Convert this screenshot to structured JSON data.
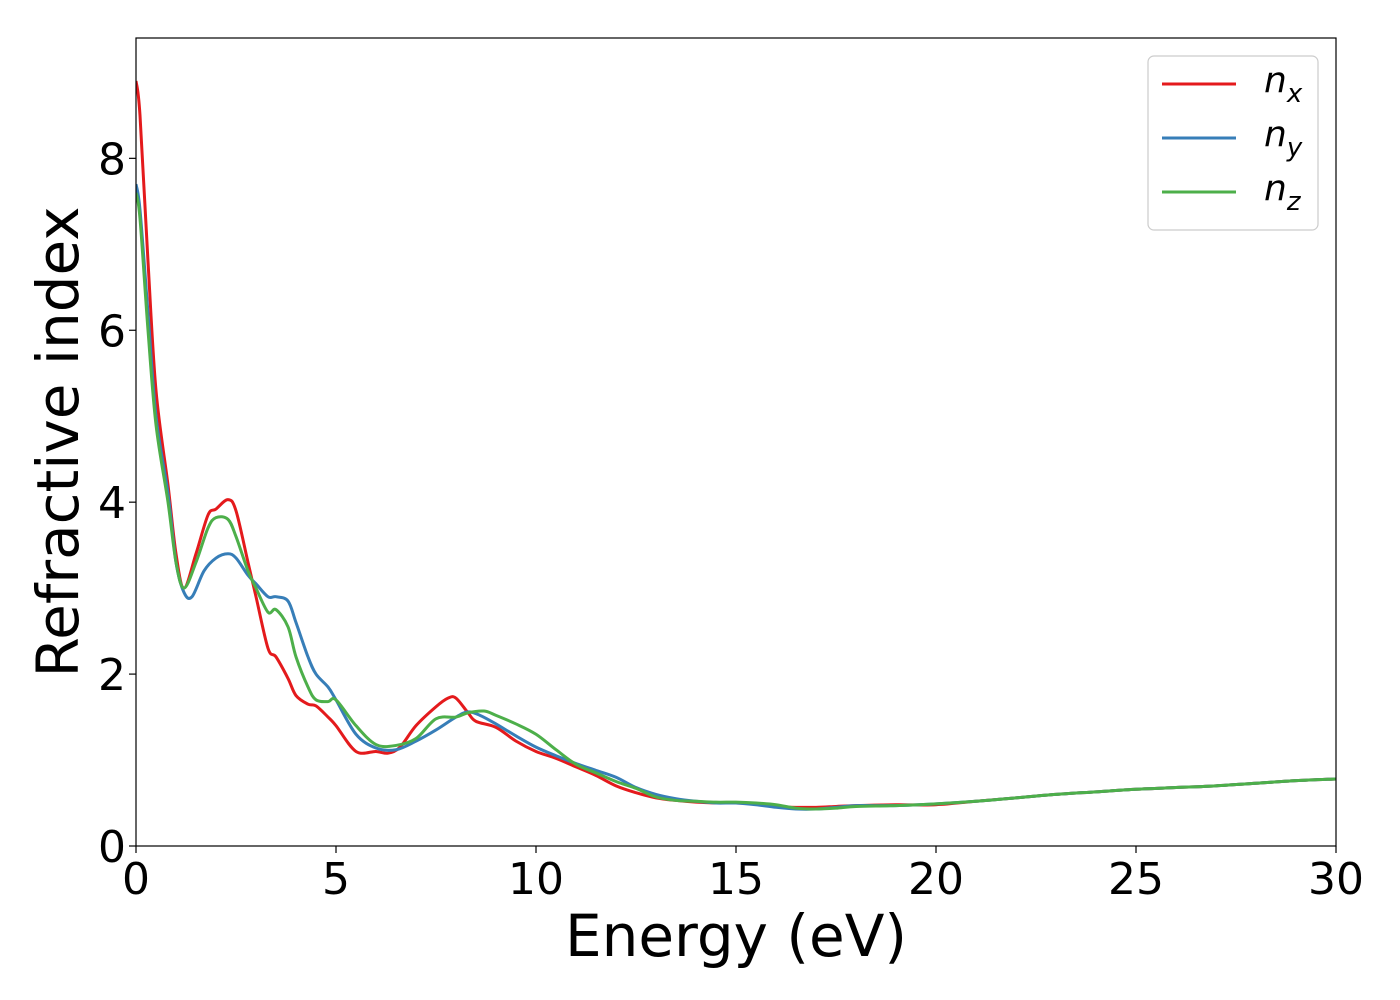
{
  "chart_data": {
    "type": "line",
    "xlabel": "Energy (eV)",
    "ylabel": "Refractive index",
    "xlim": [
      0,
      30
    ],
    "ylim": [
      0,
      9.4
    ],
    "xticks": [
      "0",
      "5",
      "10",
      "15",
      "20",
      "25",
      "30"
    ],
    "yticks": [
      "0",
      "2",
      "4",
      "6",
      "8"
    ],
    "grid": false,
    "legend_position": "top-right",
    "series": [
      {
        "name": "n",
        "subscript": "x",
        "color": "#e41a1c",
        "x": [
          0,
          0.1,
          0.3,
          0.5,
          0.8,
          1.0,
          1.2,
          1.5,
          1.8,
          2.0,
          2.3,
          2.5,
          2.8,
          3.0,
          3.3,
          3.5,
          3.8,
          4.0,
          4.3,
          4.5,
          4.8,
          5.0,
          5.5,
          6.0,
          6.3,
          6.6,
          7.0,
          7.5,
          7.8,
          8.0,
          8.3,
          8.5,
          9.0,
          9.5,
          10.0,
          10.5,
          11.0,
          11.5,
          12.0,
          12.5,
          13.0,
          13.5,
          14.0,
          14.5,
          15.0,
          15.5,
          16.0,
          16.5,
          17.0,
          17.5,
          18.0,
          19.0,
          20.0,
          21.0,
          22.0,
          23.0,
          24.0,
          25.0,
          26.0,
          27.0,
          28.0,
          29.0,
          30.0
        ],
        "values": [
          8.9,
          8.5,
          6.8,
          5.3,
          4.2,
          3.4,
          3.0,
          3.4,
          3.85,
          3.92,
          4.03,
          3.9,
          3.3,
          2.9,
          2.3,
          2.2,
          1.95,
          1.75,
          1.65,
          1.63,
          1.5,
          1.4,
          1.1,
          1.1,
          1.08,
          1.15,
          1.4,
          1.62,
          1.72,
          1.72,
          1.55,
          1.45,
          1.38,
          1.22,
          1.1,
          1.02,
          0.92,
          0.82,
          0.7,
          0.62,
          0.56,
          0.53,
          0.51,
          0.5,
          0.5,
          0.49,
          0.46,
          0.45,
          0.45,
          0.46,
          0.47,
          0.48,
          0.48,
          0.52,
          0.56,
          0.6,
          0.63,
          0.66,
          0.68,
          0.7,
          0.73,
          0.76,
          0.78
        ]
      },
      {
        "name": "n",
        "subscript": "y",
        "color": "#377eb8",
        "x": [
          0,
          0.1,
          0.3,
          0.5,
          0.8,
          1.0,
          1.2,
          1.4,
          1.7,
          2.0,
          2.3,
          2.5,
          2.8,
          3.0,
          3.3,
          3.5,
          3.8,
          4.0,
          4.3,
          4.5,
          4.8,
          5.0,
          5.5,
          6.0,
          6.5,
          7.0,
          7.5,
          8.0,
          8.3,
          8.6,
          9.0,
          9.5,
          10.0,
          10.5,
          11.0,
          11.5,
          12.0,
          12.5,
          13.0,
          13.5,
          14.0,
          14.5,
          15.0,
          15.5,
          16.0,
          16.5,
          17.0,
          17.5,
          18.0,
          19.0,
          20.0,
          21.0,
          22.0,
          23.0,
          24.0,
          25.0,
          26.0,
          27.0,
          28.0,
          29.0,
          30.0
        ],
        "values": [
          7.7,
          7.4,
          6.2,
          5.0,
          4.1,
          3.3,
          2.95,
          2.9,
          3.2,
          3.35,
          3.4,
          3.35,
          3.15,
          3.05,
          2.9,
          2.9,
          2.85,
          2.6,
          2.2,
          2.0,
          1.85,
          1.7,
          1.3,
          1.14,
          1.12,
          1.22,
          1.35,
          1.5,
          1.56,
          1.52,
          1.42,
          1.28,
          1.15,
          1.05,
          0.96,
          0.88,
          0.8,
          0.68,
          0.6,
          0.55,
          0.52,
          0.5,
          0.5,
          0.48,
          0.45,
          0.43,
          0.43,
          0.45,
          0.47,
          0.47,
          0.49,
          0.52,
          0.56,
          0.6,
          0.63,
          0.66,
          0.68,
          0.7,
          0.73,
          0.76,
          0.78
        ]
      },
      {
        "name": "n",
        "subscript": "z",
        "color": "#4daf4a",
        "x": [
          0,
          0.1,
          0.3,
          0.5,
          0.8,
          1.0,
          1.2,
          1.5,
          1.8,
          2.0,
          2.3,
          2.5,
          2.8,
          3.0,
          3.3,
          3.5,
          3.8,
          4.0,
          4.3,
          4.5,
          4.8,
          5.0,
          5.5,
          6.0,
          6.5,
          7.0,
          7.5,
          8.0,
          8.3,
          8.7,
          9.0,
          9.5,
          10.0,
          10.5,
          11.0,
          11.5,
          12.0,
          12.5,
          13.0,
          13.5,
          14.0,
          14.5,
          15.0,
          15.5,
          16.0,
          16.5,
          17.0,
          17.5,
          18.0,
          19.0,
          20.0,
          21.0,
          22.0,
          23.0,
          24.0,
          25.0,
          26.0,
          27.0,
          28.0,
          29.0,
          30.0
        ],
        "values": [
          7.6,
          7.3,
          6.0,
          4.9,
          4.0,
          3.3,
          3.0,
          3.3,
          3.7,
          3.82,
          3.8,
          3.6,
          3.2,
          3.0,
          2.72,
          2.75,
          2.55,
          2.2,
          1.85,
          1.7,
          1.68,
          1.7,
          1.4,
          1.18,
          1.17,
          1.25,
          1.48,
          1.5,
          1.55,
          1.57,
          1.52,
          1.42,
          1.3,
          1.12,
          0.95,
          0.85,
          0.75,
          0.67,
          0.57,
          0.53,
          0.52,
          0.51,
          0.51,
          0.5,
          0.48,
          0.44,
          0.43,
          0.44,
          0.46,
          0.47,
          0.49,
          0.52,
          0.56,
          0.6,
          0.63,
          0.66,
          0.68,
          0.7,
          0.73,
          0.76,
          0.78
        ]
      }
    ]
  }
}
